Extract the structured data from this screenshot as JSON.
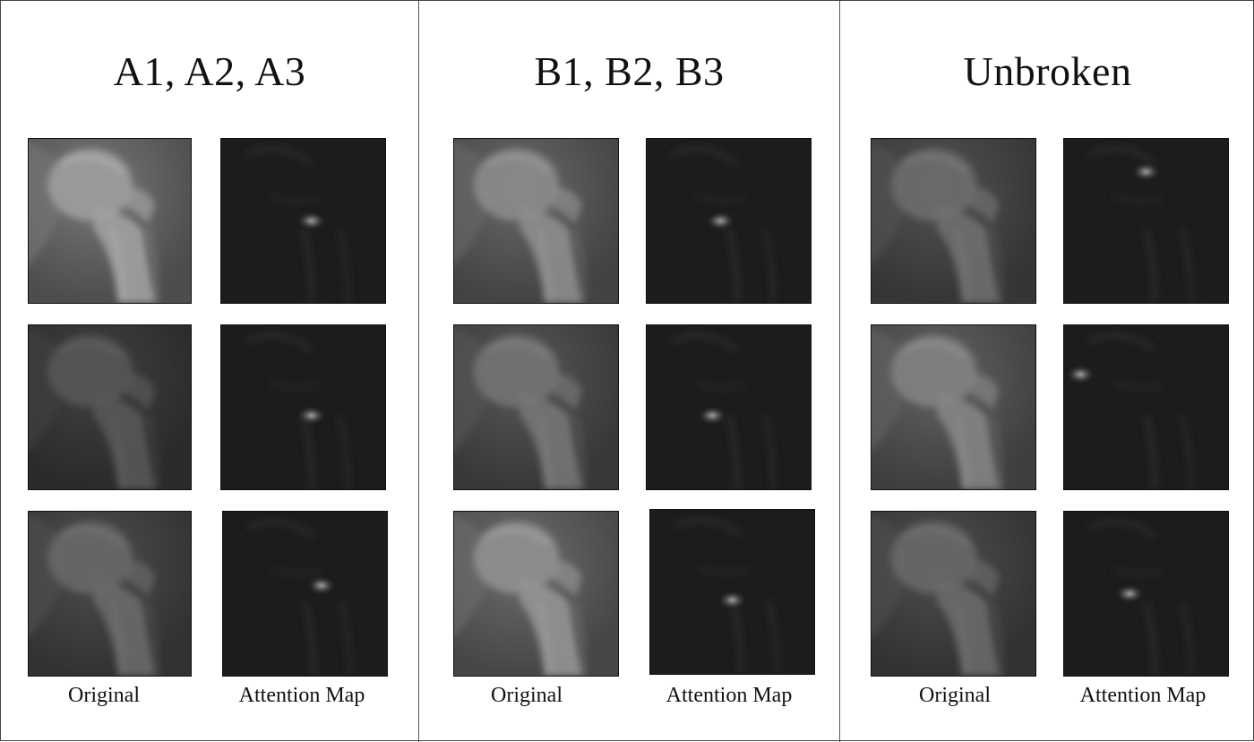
{
  "panels": [
    {
      "title": "A1, A2, A3",
      "labels": {
        "original": "Original",
        "attention": "Attention Map"
      },
      "rows": [
        {
          "original_brightness": 0.55,
          "attention_hotspot": [
            0.55,
            0.5
          ]
        },
        {
          "original_brightness": 0.3,
          "attention_hotspot": [
            0.55,
            0.55
          ]
        },
        {
          "original_brightness": 0.36,
          "attention_hotspot": [
            0.6,
            0.45
          ]
        }
      ]
    },
    {
      "title": "B1, B2, B3",
      "labels": {
        "original": "Original",
        "attention": "Attention Map"
      },
      "rows": [
        {
          "original_brightness": 0.48,
          "attention_hotspot": [
            0.45,
            0.5
          ]
        },
        {
          "original_brightness": 0.4,
          "attention_hotspot": [
            0.4,
            0.55
          ]
        },
        {
          "original_brightness": 0.5,
          "attention_hotspot": [
            0.5,
            0.55
          ]
        }
      ]
    },
    {
      "title": "Unbroken",
      "labels": {
        "original": "Original",
        "attention": "Attention Map"
      },
      "rows": [
        {
          "original_brightness": 0.38,
          "attention_hotspot": [
            0.5,
            0.2
          ]
        },
        {
          "original_brightness": 0.45,
          "attention_hotspot": [
            0.1,
            0.3
          ]
        },
        {
          "original_brightness": 0.36,
          "attention_hotspot": [
            0.4,
            0.5
          ]
        }
      ]
    }
  ]
}
